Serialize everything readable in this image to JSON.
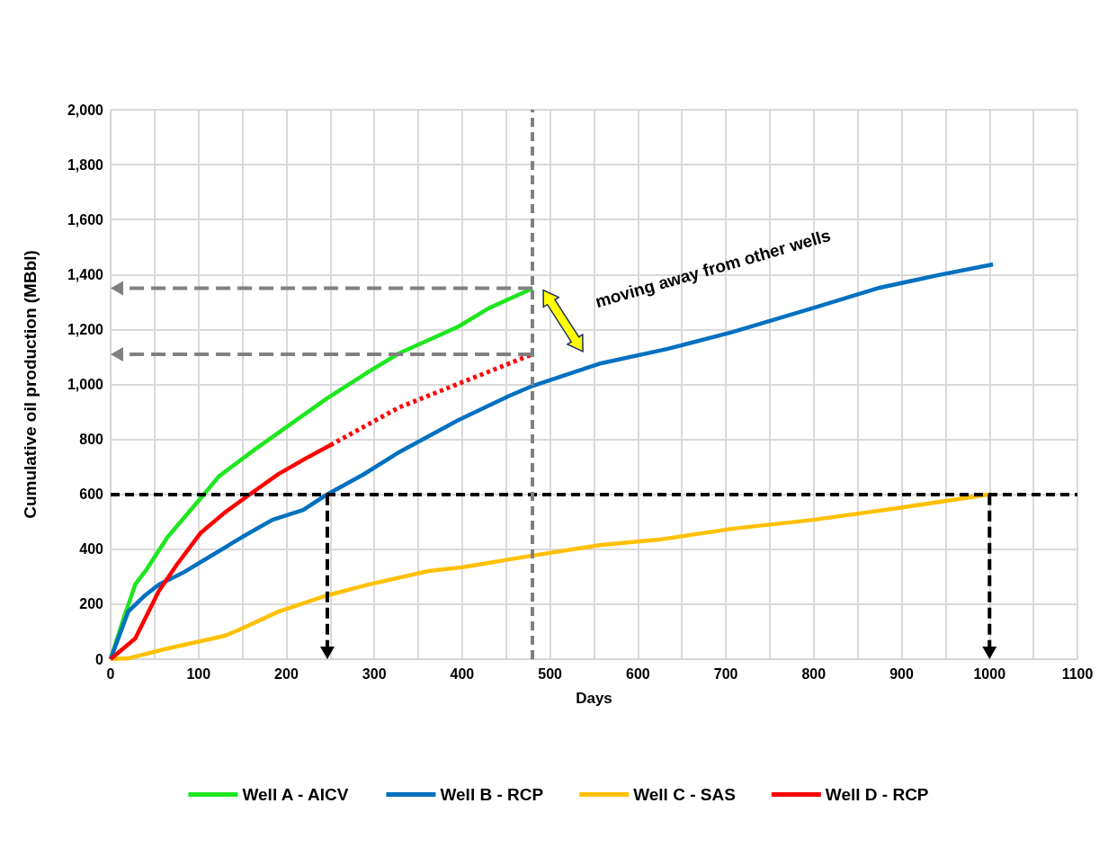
{
  "chart_data": {
    "type": "line",
    "xlabel": "Days",
    "ylabel": "Cumulative oil production (MBbl)",
    "xlim": [
      0,
      1100
    ],
    "xticks": [
      0,
      {
        "value": 50,
        "label": null
      },
      100,
      {
        "value": 150,
        "label": null
      },
      200,
      {
        "value": 250,
        "label": null
      },
      300,
      {
        "value": 350,
        "label": null
      },
      400,
      {
        "value": 450,
        "label": null
      },
      500,
      {
        "value": 550,
        "label": null
      },
      600,
      {
        "value": 650,
        "label": null
      },
      700,
      {
        "value": 750,
        "label": null
      },
      800,
      {
        "value": 850,
        "label": null
      },
      900,
      {
        "value": 950,
        "label": null
      },
      1000,
      {
        "value": 1050,
        "label": null
      },
      1100
    ],
    "ylim": [
      0,
      2000
    ],
    "yticks": [
      0,
      200,
      400,
      600,
      800,
      {
        "value": 1000,
        "label": "1,000"
      },
      {
        "value": 1200,
        "label": "1,200"
      },
      {
        "value": 1400,
        "label": "1,400"
      },
      {
        "value": 1600,
        "label": "1,600"
      },
      {
        "value": 1800,
        "label": "1,800"
      },
      {
        "value": 2000,
        "label": "2,000"
      }
    ],
    "grid": true,
    "legend": "bottom",
    "marker": "none",
    "line_style": "solid",
    "series": [
      {
        "name": "Well A - AICV",
        "color": "#1ee61e",
        "x": [
          0,
          14,
          28,
          41,
          65,
          106,
          123,
          164,
          246,
          294,
          328,
          396,
          430,
          475,
          480
        ],
        "values": [
          0,
          141,
          272,
          327,
          445,
          599,
          665,
          763,
          949,
          1047,
          1113,
          1211,
          1277,
          1342,
          1350
        ]
      },
      {
        "name": "Well B - RCP",
        "color": "#0070c0",
        "x": [
          0,
          20,
          38,
          55,
          82,
          106,
          150,
          184,
          219,
          246,
          287,
          328,
          396,
          454,
          478,
          558,
          633,
          708,
          804,
          875,
          942,
          1004
        ],
        "values": [
          0,
          173,
          229,
          272,
          314,
          360,
          445,
          507,
          543,
          599,
          671,
          753,
          871,
          959,
          992,
          1077,
          1129,
          1191,
          1283,
          1352,
          1398,
          1437
        ]
      },
      {
        "name": "Well C - SAS",
        "color": "#ffc000",
        "x": [
          0,
          20,
          61,
          130,
          147,
          191,
          243,
          294,
          362,
          399,
          478,
          558,
          624,
          708,
          799,
          896,
          1000
        ],
        "values": [
          0,
          3,
          36,
          85,
          108,
          173,
          229,
          272,
          321,
          334,
          376,
          416,
          435,
          475,
          507,
          550,
          600
        ]
      },
      {
        "name": "Well D - RCP",
        "color": "#ff0000",
        "x": [
          0,
          28,
          55,
          76,
          102,
          130,
          158,
          191,
          225,
          250
        ],
        "values": [
          0,
          75,
          249,
          347,
          458,
          534,
          599,
          674,
          736,
          779
        ]
      },
      {
        "color": "#ff0000",
        "line_style": "dotted",
        "x": [
          250,
          328,
          480
        ],
        "values": [
          779,
          916,
          1110
        ]
      }
    ],
    "ref_lines": [
      {
        "axis": "y",
        "value": 600,
        "color": "#000000",
        "line_style": "dashed"
      },
      {
        "axis": "x",
        "value": 480,
        "color": "#808080",
        "line_style": "dashed"
      }
    ],
    "annotations": [
      "moving away from other wells"
    ]
  }
}
